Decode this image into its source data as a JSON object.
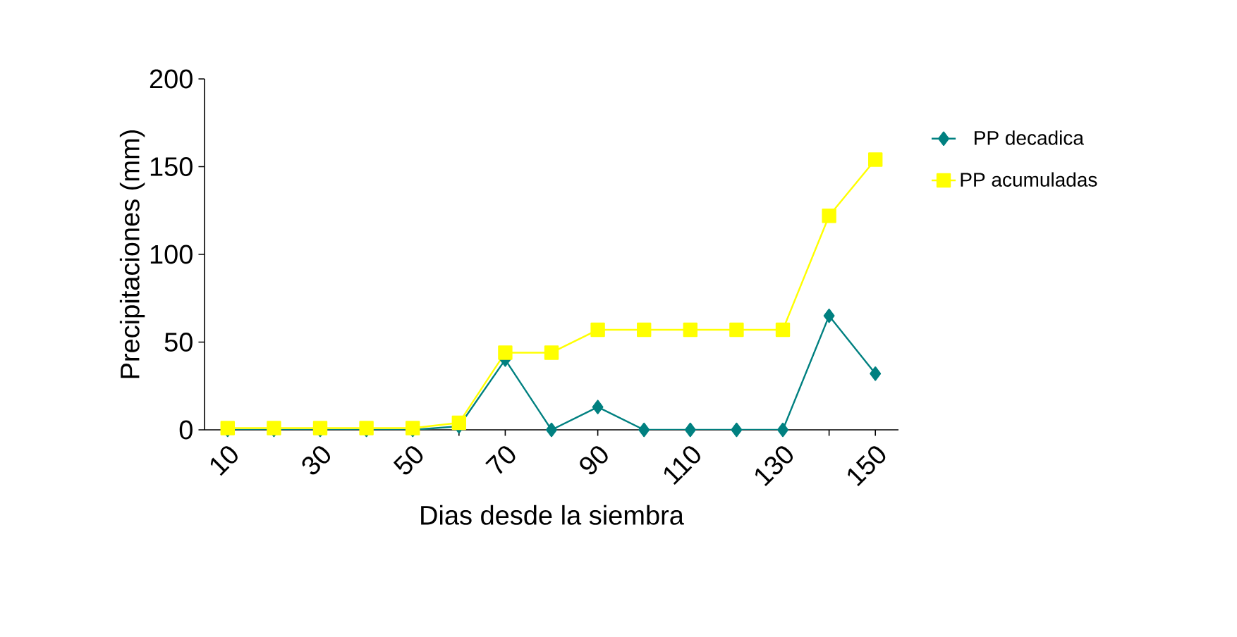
{
  "chart_data": {
    "type": "line",
    "xlabel": "Dias desde la siembra",
    "ylabel": "Precipitaciones (mm)",
    "categories": [
      "10",
      null,
      "30",
      null,
      "50",
      null,
      "70",
      null,
      "90",
      null,
      "110",
      null,
      "130",
      null,
      "150"
    ],
    "series": [
      {
        "name": "PP decadica",
        "color": "#008080",
        "marker": "diamond",
        "values": [
          0,
          0,
          0,
          0,
          0,
          2,
          40,
          0,
          13,
          0,
          0,
          0,
          0,
          65,
          32
        ]
      },
      {
        "name": "PP acumuladas",
        "color": "#ffff00",
        "marker": "square",
        "values": [
          1,
          1,
          1,
          1,
          1,
          4,
          44,
          44,
          57,
          57,
          57,
          57,
          57,
          122,
          154
        ]
      }
    ],
    "ylim": [
      0,
      200
    ],
    "yticks": [
      0,
      50,
      100,
      150,
      200
    ],
    "grid": false,
    "legend": "right"
  }
}
